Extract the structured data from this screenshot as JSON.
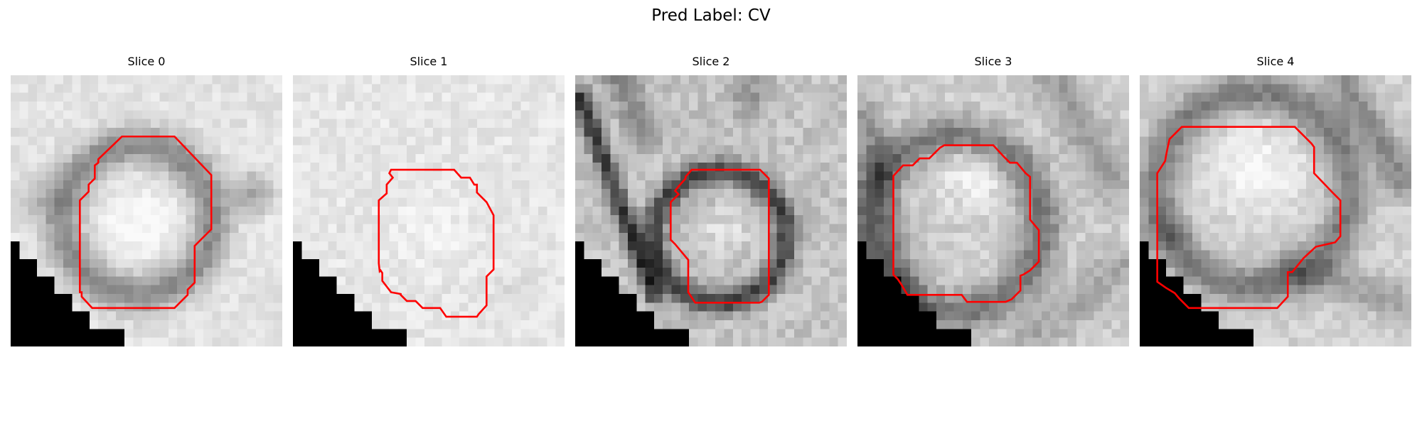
{
  "figure": {
    "title": "Pred Label: CV"
  },
  "colors": {
    "contour": "#ff0000",
    "background": "#ffffff",
    "masked_region": "#000000"
  },
  "slices": [
    {
      "title": "Slice 0"
    },
    {
      "title": "Slice 1"
    },
    {
      "title": "Slice 2"
    },
    {
      "title": "Slice 3"
    },
    {
      "title": "Slice 4"
    }
  ]
}
